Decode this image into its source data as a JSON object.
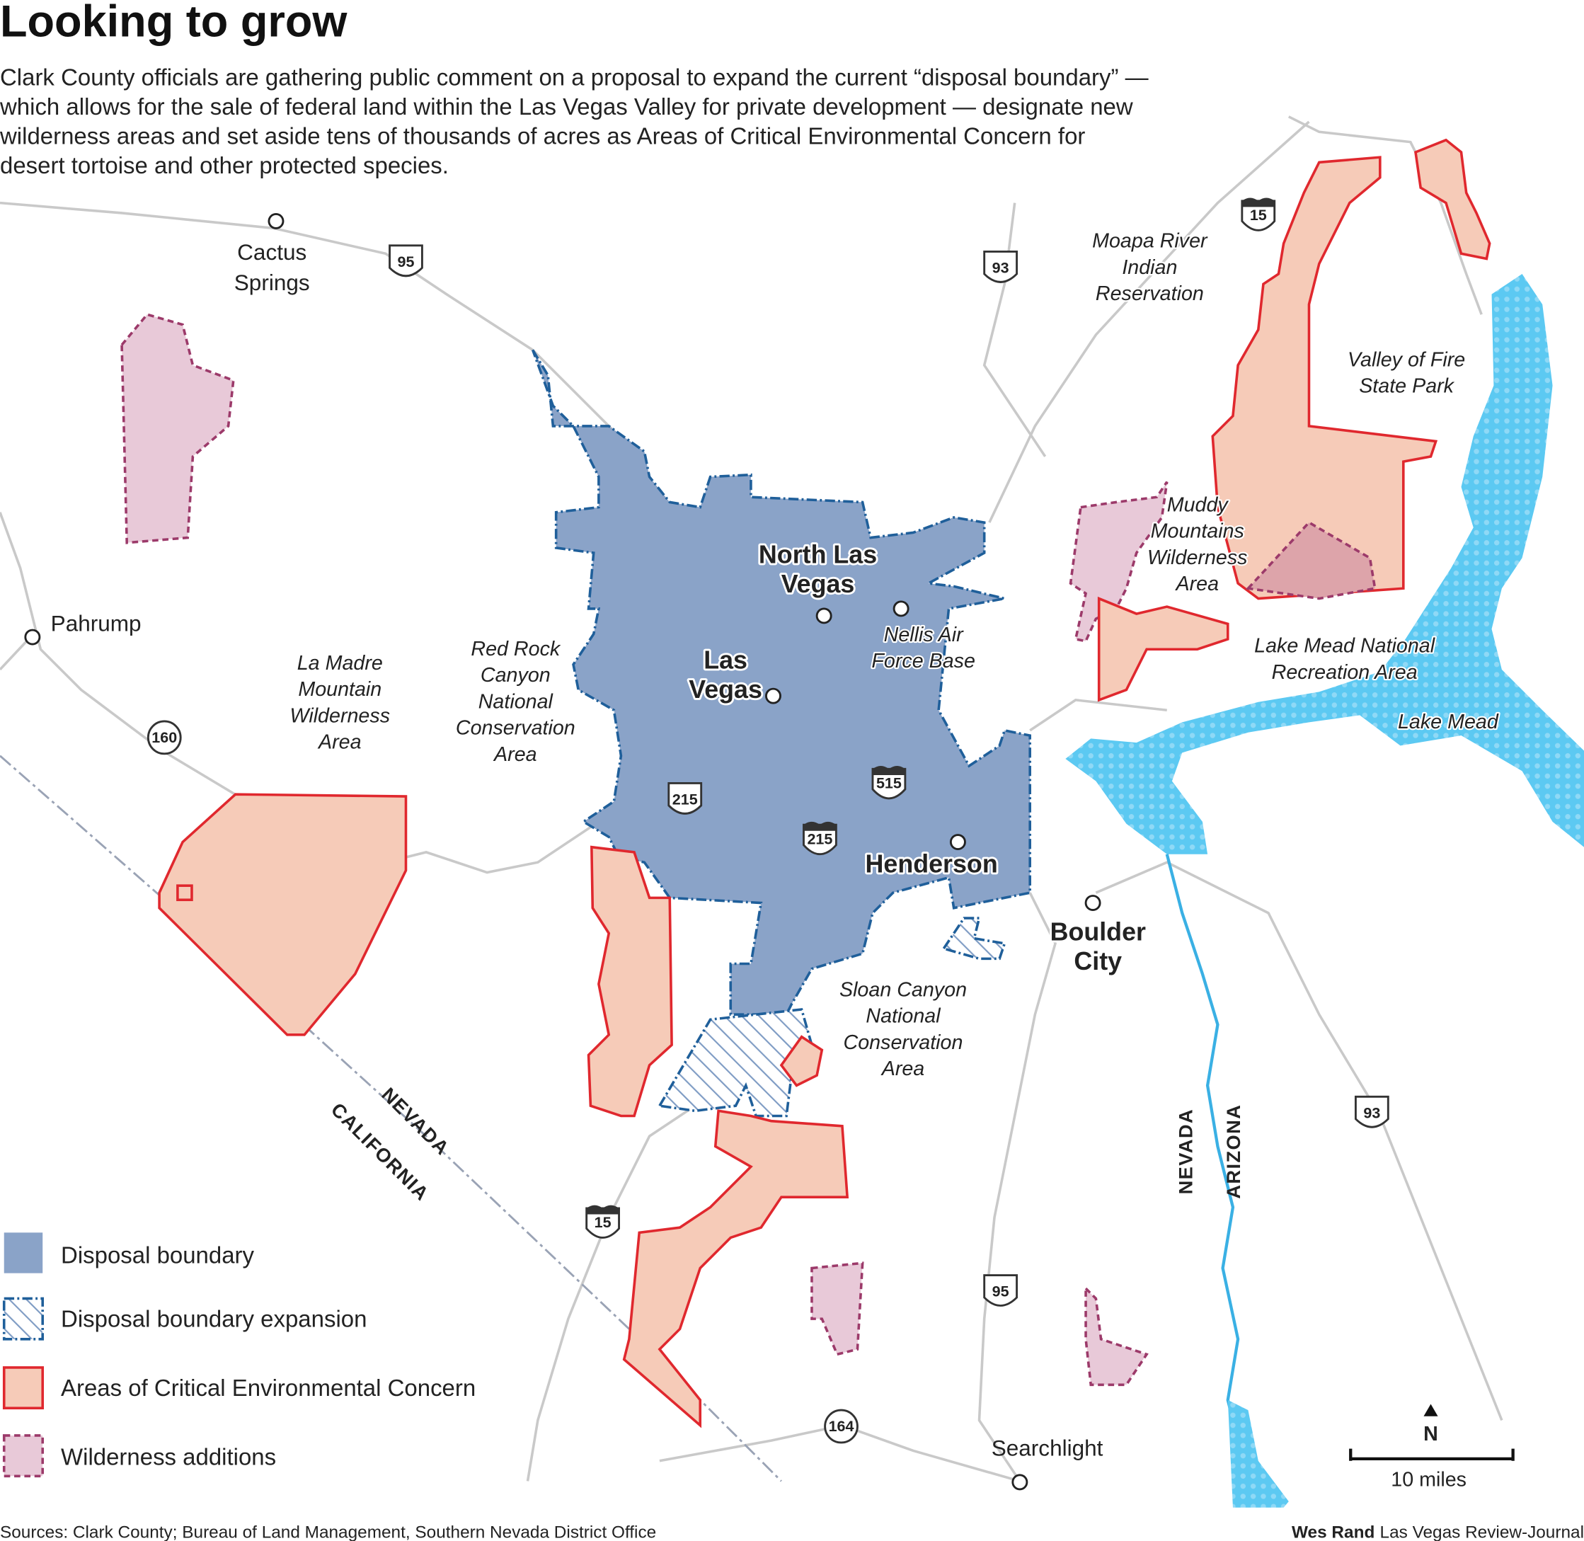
{
  "header": {
    "title": "Looking to grow",
    "description_lines": [
      "Clark County officials are gathering public comment on a proposal to expand the current “disposal boundary” —",
      "which allows for the sale of federal land within the Las Vegas Valley for private development — designate new",
      "wilderness areas and set aside tens of thousands of acres as Areas of Critical Environmental Concern for",
      "desert tortoise and other protected species."
    ]
  },
  "map": {
    "towns": [
      {
        "lines": [
          "Cactus",
          "Springs"
        ]
      },
      {
        "lines": [
          "Pahrump"
        ]
      },
      {
        "lines": [
          "North Las",
          "Vegas"
        ]
      },
      {
        "lines": [
          "Las",
          "Vegas"
        ]
      },
      {
        "lines": [
          "Henderson"
        ]
      },
      {
        "lines": [
          "Boulder",
          "City"
        ]
      },
      {
        "lines": [
          "Searchlight"
        ]
      }
    ],
    "areas": [
      {
        "lines": [
          "Moapa River",
          "Indian",
          "Reservation"
        ]
      },
      {
        "lines": [
          "Valley of Fire",
          "State Park"
        ]
      },
      {
        "lines": [
          "Muddy",
          "Mountains",
          "Wilderness",
          "Area"
        ]
      },
      {
        "lines": [
          "Nellis Air",
          "Force Base"
        ]
      },
      {
        "lines": [
          "Lake Mead National",
          "Recreation Area"
        ]
      },
      {
        "lines": [
          "Lake Mead"
        ]
      },
      {
        "lines": [
          "La Madre",
          "Mountain",
          "Wilderness",
          "Area"
        ]
      },
      {
        "lines": [
          "Red Rock",
          "Canyon",
          "National",
          "Conservation",
          "Area"
        ]
      },
      {
        "lines": [
          "Sloan Canyon",
          "National",
          "Conservation",
          "Area"
        ]
      }
    ],
    "highways": [
      "15",
      "95",
      "93",
      "160",
      "215",
      "515",
      "215",
      "15",
      "95",
      "93",
      "164"
    ],
    "states": [
      "NEVADA",
      "CALIFORNIA",
      "NEVADA",
      "ARIZONA"
    ]
  },
  "legend": {
    "items": [
      "Disposal boundary",
      "Disposal boundary expansion",
      "Areas of Critical Environmental Concern",
      "Wilderness additions"
    ]
  },
  "scale": {
    "north": "N",
    "label": "10 miles"
  },
  "footer": {
    "sources": "Sources: Clark County; Bureau of Land Management, Southern Nevada District Office",
    "credit_name": "Wes Rand",
    "credit_org": "Las Vegas Review-Journal"
  }
}
